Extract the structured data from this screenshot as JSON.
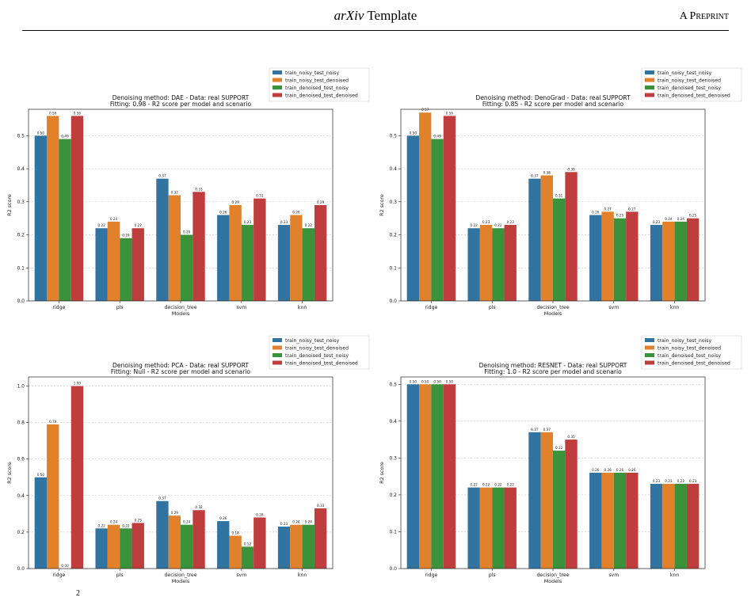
{
  "page_header": {
    "title_italic": "arXiv",
    "title_rest": " Template",
    "right_label": "A Preprint"
  },
  "footer_fragment": "2",
  "colors": {
    "train_noisy_test_noisy": "#3274a1",
    "train_noisy_test_denoised": "#e1812c",
    "train_denoised_test_noisy": "#3a923a",
    "train_denoised_test_denoised": "#c03d3e"
  },
  "chart_data": [
    {
      "type": "bar",
      "title": "Denoising method: DAE - Data: real SUPPORT",
      "subtitle": "Fitting: 0.98 - R2 score per model and scenario",
      "xlabel": "Models",
      "ylabel": "R2 score",
      "ylim": [
        0,
        0.58
      ],
      "yticks": [
        "0.0",
        "0.1",
        "0.2",
        "0.3",
        "0.4",
        "0.5"
      ],
      "grid": "horizontal dashed",
      "legend": "top-right, outside",
      "categories": [
        "ridge",
        "pls",
        "decision_tree",
        "svm",
        "knn"
      ],
      "series": [
        {
          "name": "train_noisy_test_noisy",
          "values": [
            0.5,
            0.22,
            0.37,
            0.26,
            0.23
          ]
        },
        {
          "name": "train_noisy_test_denoised",
          "values": [
            0.56,
            0.24,
            0.32,
            0.29,
            0.26
          ]
        },
        {
          "name": "train_denoised_test_noisy",
          "values": [
            0.49,
            0.19,
            0.2,
            0.23,
            0.22
          ]
        },
        {
          "name": "train_denoised_test_denoised",
          "values": [
            0.56,
            0.22,
            0.33,
            0.31,
            0.29
          ]
        }
      ]
    },
    {
      "type": "bar",
      "title": "Denoising method: DenoGrad - Data: real SUPPORT",
      "subtitle": "Fitting: 0.85 - R2 score per model and scenario",
      "xlabel": "Models",
      "ylabel": "R2 score",
      "ylim": [
        0,
        0.58
      ],
      "yticks": [
        "0.0",
        "0.1",
        "0.2",
        "0.3",
        "0.4",
        "0.5"
      ],
      "grid": "horizontal dashed",
      "legend": "top-right, outside",
      "categories": [
        "ridge",
        "pls",
        "decision_tree",
        "svm",
        "knn"
      ],
      "series": [
        {
          "name": "train_noisy_test_noisy",
          "values": [
            0.5,
            0.22,
            0.37,
            0.26,
            0.23
          ]
        },
        {
          "name": "train_noisy_test_denoised",
          "values": [
            0.57,
            0.23,
            0.38,
            0.27,
            0.24
          ]
        },
        {
          "name": "train_denoised_test_noisy",
          "values": [
            0.49,
            0.22,
            0.31,
            0.25,
            0.24
          ]
        },
        {
          "name": "train_denoised_test_denoised",
          "values": [
            0.56,
            0.23,
            0.39,
            0.27,
            0.25
          ]
        }
      ]
    },
    {
      "type": "bar",
      "title": "Denoising method: PCA - Data: real SUPPORT",
      "subtitle": "Fitting: Null - R2 score per model and scenario",
      "xlabel": "Models",
      "ylabel": "R2 score",
      "ylim": [
        0,
        1.05
      ],
      "yticks": [
        "0.0",
        "0.2",
        "0.4",
        "0.6",
        "0.8",
        "1.0"
      ],
      "grid": "horizontal dashed",
      "legend": "top-right, outside",
      "categories": [
        "ridge",
        "pls",
        "decision_tree",
        "svm",
        "knn"
      ],
      "series": [
        {
          "name": "train_noisy_test_noisy",
          "values": [
            0.5,
            0.22,
            0.37,
            0.26,
            0.23
          ]
        },
        {
          "name": "train_noisy_test_denoised",
          "values": [
            0.79,
            0.24,
            0.29,
            0.18,
            0.24
          ]
        },
        {
          "name": "train_denoised_test_noisy",
          "values": [
            0.0,
            0.22,
            0.24,
            0.12,
            0.24
          ]
        },
        {
          "name": "train_denoised_test_denoised",
          "values": [
            1.0,
            0.25,
            0.32,
            0.28,
            0.33
          ]
        }
      ]
    },
    {
      "type": "bar",
      "title": "Denoising method: RESNET - Data: real SUPPORT",
      "subtitle": "Fitting: 1.0 - R2 score per model and scenario",
      "xlabel": "Models",
      "ylabel": "R2 score",
      "ylim": [
        0,
        0.52
      ],
      "yticks": [
        "0.0",
        "0.1",
        "0.2",
        "0.3",
        "0.4",
        "0.5"
      ],
      "grid": "horizontal dashed",
      "legend": "top-right, outside",
      "categories": [
        "ridge",
        "pls",
        "decision_tree",
        "svm",
        "knn"
      ],
      "series": [
        {
          "name": "train_noisy_test_noisy",
          "values": [
            0.5,
            0.22,
            0.37,
            0.26,
            0.23
          ]
        },
        {
          "name": "train_noisy_test_denoised",
          "values": [
            0.5,
            0.22,
            0.37,
            0.26,
            0.23
          ]
        },
        {
          "name": "train_denoised_test_noisy",
          "values": [
            0.5,
            0.22,
            0.32,
            0.26,
            0.23
          ]
        },
        {
          "name": "train_denoised_test_denoised",
          "values": [
            0.5,
            0.22,
            0.35,
            0.26,
            0.23
          ]
        }
      ]
    }
  ]
}
